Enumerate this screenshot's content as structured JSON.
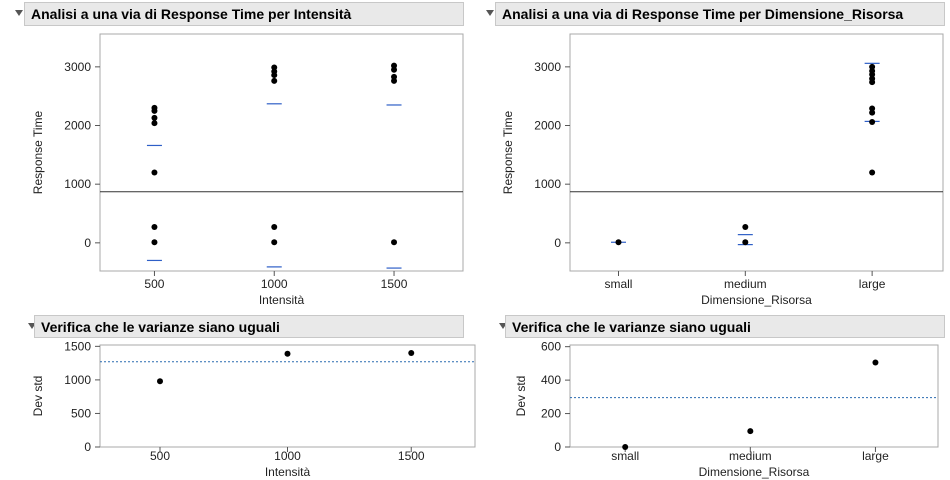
{
  "panels": {
    "top_left": {
      "title": "Analisi a una via di Response Time per Intensità"
    },
    "top_right": {
      "title": "Analisi a una via di Response Time per Dimensione_Risorsa"
    },
    "bottom_left": {
      "title": "Verifica che le varianze siano uguali"
    },
    "bottom_right": {
      "title": "Verifica che le varianze siano uguali"
    }
  },
  "colors": {
    "points": "#000000",
    "mean_line": "#2e5fc7",
    "grand_mean": "#333333",
    "reference": "#2a6bb0",
    "frame": "#a8a8a8"
  },
  "chart_data": [
    {
      "id": "oneway_intensita",
      "type": "scatter",
      "xlabel": "Intensità",
      "ylabel": "Response Time",
      "categories": [
        "500",
        "1000",
        "1500"
      ],
      "yticks": [
        0,
        1000,
        2000,
        3000
      ],
      "ylim": [
        -480,
        3560
      ],
      "grand_mean": 870,
      "points": [
        {
          "x": "500",
          "y": 2300
        },
        {
          "x": "500",
          "y": 2250
        },
        {
          "x": "500",
          "y": 2130
        },
        {
          "x": "500",
          "y": 2040
        },
        {
          "x": "500",
          "y": 1200
        },
        {
          "x": "500",
          "y": 270
        },
        {
          "x": "500",
          "y": 10
        },
        {
          "x": "1000",
          "y": 2990
        },
        {
          "x": "1000",
          "y": 2920
        },
        {
          "x": "1000",
          "y": 2860
        },
        {
          "x": "1000",
          "y": 2760
        },
        {
          "x": "1000",
          "y": 270
        },
        {
          "x": "1000",
          "y": 10
        },
        {
          "x": "1500",
          "y": 3020
        },
        {
          "x": "1500",
          "y": 2950
        },
        {
          "x": "1500",
          "y": 2830
        },
        {
          "x": "1500",
          "y": 2760
        },
        {
          "x": "1500",
          "y": 10
        }
      ],
      "group_lines": [
        {
          "x": "500",
          "y": 1660
        },
        {
          "x": "500",
          "y": -300
        },
        {
          "x": "1000",
          "y": 2370
        },
        {
          "x": "1000",
          "y": -410
        },
        {
          "x": "1500",
          "y": 2350
        },
        {
          "x": "1500",
          "y": -430
        }
      ]
    },
    {
      "id": "oneway_dimensione",
      "type": "scatter",
      "xlabel": "Dimensione_Risorsa",
      "ylabel": "Response Time",
      "categories": [
        "small",
        "medium",
        "large"
      ],
      "yticks": [
        0,
        1000,
        2000,
        3000
      ],
      "ylim": [
        -480,
        3560
      ],
      "grand_mean": 870,
      "points": [
        {
          "x": "small",
          "y": 10
        },
        {
          "x": "medium",
          "y": 270
        },
        {
          "x": "medium",
          "y": 10
        },
        {
          "x": "large",
          "y": 3000
        },
        {
          "x": "large",
          "y": 2930
        },
        {
          "x": "large",
          "y": 2870
        },
        {
          "x": "large",
          "y": 2800
        },
        {
          "x": "large",
          "y": 2740
        },
        {
          "x": "large",
          "y": 2290
        },
        {
          "x": "large",
          "y": 2220
        },
        {
          "x": "large",
          "y": 2060
        },
        {
          "x": "large",
          "y": 1200
        }
      ],
      "group_lines": [
        {
          "x": "small",
          "y": 10
        },
        {
          "x": "medium",
          "y": 140
        },
        {
          "x": "medium",
          "y": -30
        },
        {
          "x": "large",
          "y": 3060
        },
        {
          "x": "large",
          "y": 2070
        }
      ]
    },
    {
      "id": "var_intensita",
      "type": "scatter",
      "xlabel": "Intensità",
      "ylabel": "Dev std",
      "categories": [
        "500",
        "1000",
        "1500"
      ],
      "yticks": [
        0,
        500,
        1000,
        1500
      ],
      "ylim": [
        0,
        1520
      ],
      "reference_line": 1270,
      "points": [
        {
          "x": "500",
          "y": 980
        },
        {
          "x": "1000",
          "y": 1390
        },
        {
          "x": "1500",
          "y": 1400
        }
      ]
    },
    {
      "id": "var_dimensione",
      "type": "scatter",
      "xlabel": "Dimensione_Risorsa",
      "ylabel": "Dev std",
      "categories": [
        "small",
        "medium",
        "large"
      ],
      "yticks": [
        0,
        200,
        400,
        600
      ],
      "ylim": [
        0,
        610
      ],
      "reference_line": 295,
      "points": [
        {
          "x": "small",
          "y": 0
        },
        {
          "x": "medium",
          "y": 95
        },
        {
          "x": "large",
          "y": 505
        }
      ]
    }
  ]
}
